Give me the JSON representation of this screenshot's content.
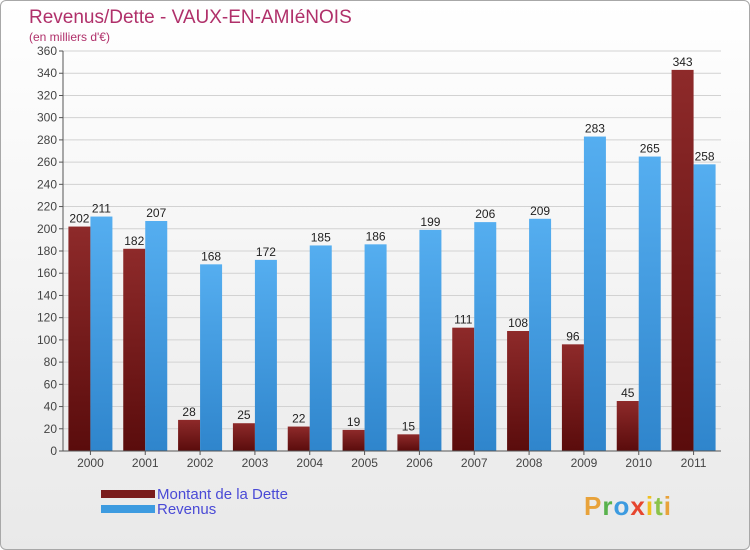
{
  "header": {
    "title": "Revenus/Dette - VAUX-EN-AMIéNOIS",
    "subtitle": "(en milliers d'€)"
  },
  "chart_data": {
    "type": "bar",
    "categories": [
      "2000",
      "2001",
      "2002",
      "2003",
      "2004",
      "2005",
      "2006",
      "2007",
      "2008",
      "2009",
      "2010",
      "2011"
    ],
    "series": [
      {
        "name": "Montant de la Dette",
        "color": "#7a1c1c",
        "values": [
          202,
          182,
          28,
          25,
          22,
          19,
          15,
          111,
          108,
          96,
          45,
          343
        ]
      },
      {
        "name": "Revenus",
        "color": "#3d9be0",
        "values": [
          211,
          207,
          168,
          172,
          185,
          186,
          199,
          206,
          209,
          283,
          265,
          258
        ]
      }
    ],
    "ylim": [
      0,
      360
    ],
    "ytick_step": 20,
    "grid": true,
    "legend": "bottom-left"
  },
  "legend": {
    "items": [
      {
        "label": "Montant de la Dette",
        "color": "#7a1c1c"
      },
      {
        "label": "Revenus",
        "color": "#3d9be0"
      }
    ]
  },
  "branding": {
    "logo_text": "Proxiti"
  }
}
